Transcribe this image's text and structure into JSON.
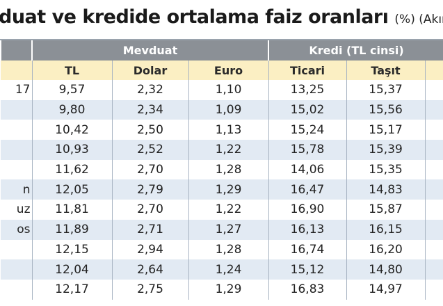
{
  "title": "duat ve kredide ortalama faiz oranları",
  "title_note": "(%) (Akın",
  "table": {
    "groups": [
      "Mevduat",
      "Kredi (TL cinsi)"
    ],
    "columns": [
      "TL",
      "Dolar",
      "Euro",
      "Ticari",
      "Taşıt"
    ],
    "rows": [
      [
        "17",
        "9,57",
        "2,32",
        "1,10",
        "13,25",
        "15,37"
      ],
      [
        null,
        "9,80",
        "2,34",
        "1,09",
        "15,02",
        "15,56"
      ],
      [
        null,
        "10,42",
        "2,50",
        "1,13",
        "15,24",
        "15,17"
      ],
      [
        null,
        "10,93",
        "2,52",
        "1,22",
        "15,78",
        "15,39"
      ],
      [
        null,
        "11,62",
        "2,70",
        "1,28",
        "14,06",
        "15,35"
      ],
      [
        "n",
        "12,05",
        "2,79",
        "1,29",
        "16,47",
        "14,83"
      ],
      [
        "uz",
        "11,81",
        "2,70",
        "1,22",
        "16,90",
        "15,87"
      ],
      [
        "os",
        "11,89",
        "2,71",
        "1,27",
        "16,13",
        "16,15"
      ],
      [
        null,
        "12,15",
        "2,94",
        "1,28",
        "16,74",
        "16,20"
      ],
      [
        null,
        "12,04",
        "2,64",
        "1,24",
        "15,12",
        "14,80"
      ],
      [
        null,
        "12,17",
        "2,75",
        "1,29",
        "16,83",
        "14,97"
      ]
    ]
  }
}
